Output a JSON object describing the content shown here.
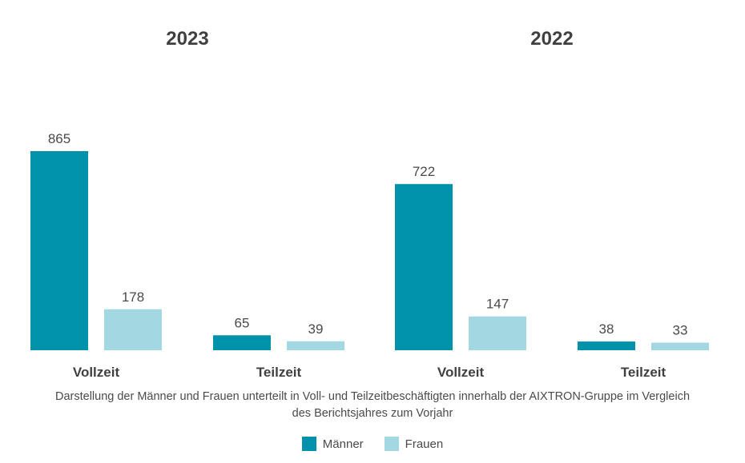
{
  "chart_data": {
    "type": "bar",
    "panels": [
      {
        "title": "2023",
        "categories": [
          "Vollzeit",
          "Teilzeit"
        ],
        "series": [
          {
            "name": "Männer",
            "values": [
              865,
              65
            ]
          },
          {
            "name": "Frauen",
            "values": [
              178,
              39
            ]
          }
        ]
      },
      {
        "title": "2022",
        "categories": [
          "Vollzeit",
          "Teilzeit"
        ],
        "series": [
          {
            "name": "Männer",
            "values": [
              722,
              38
            ]
          },
          {
            "name": "Frauen",
            "values": [
              147,
              33
            ]
          }
        ]
      }
    ],
    "ylim": [
      0,
      865
    ],
    "legend_position": "bottom",
    "grid": false,
    "colors": {
      "Männer": "#0092ab",
      "Frauen": "#a3d8e2"
    }
  },
  "caption": {
    "line1": "Darstellung der Männer und Frauen unterteilt in Voll- und Teilzeitbeschäftigten innerhalb der AIXTRON-Gruppe im Vergleich",
    "line2": "des Berichtsjahres zum Vorjahr"
  },
  "legend": {
    "items": [
      {
        "label": "Männer",
        "color": "#0092ab"
      },
      {
        "label": "Frauen",
        "color": "#a3d8e2"
      }
    ]
  }
}
